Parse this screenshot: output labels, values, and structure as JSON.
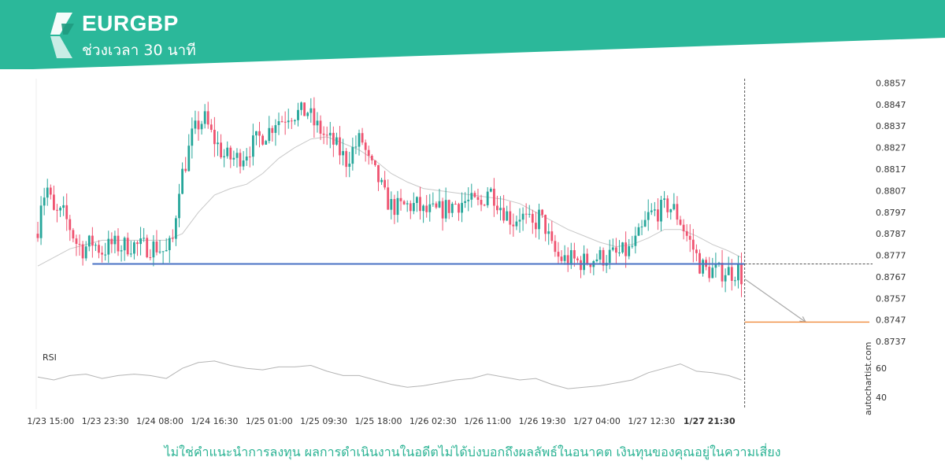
{
  "header": {
    "symbol": "EURGBP",
    "timeframe": "ช่วงเวลา 30 นาที"
  },
  "disclaimer": "ไม่ใช่คำแนะนำการลงทุน ผลการดำเนินงานในอดีตไม่ได้บ่งบอกถึงผลลัพธ์ในอนาคต เงินทุนของคุณอยู่ในความเสี่ยง",
  "watermark": "autochartist.com",
  "colors": {
    "brand": "#2bb89a",
    "brand_dark": "#1f9a80",
    "up": "#26a69a",
    "down": "#ef5370",
    "support_line": "#4a72c4",
    "target_line": "#f08a3c",
    "moving_average": "#c8c8c8",
    "rsi_line": "#b4b4b4"
  },
  "chart_data": {
    "type": "candlestick",
    "instrument": "EURGBP",
    "interval": "30m",
    "ylim": [
      0.8733,
      0.8859
    ],
    "y_ticks": [
      "0.8857",
      "0.8847",
      "0.8837",
      "0.8827",
      "0.8817",
      "0.8807",
      "0.8797",
      "0.8787",
      "0.8777",
      "0.8767",
      "0.8757",
      "0.8747",
      "0.8737"
    ],
    "x_ticks": [
      "1/23 15:00",
      "1/23 23:30",
      "1/24 08:00",
      "1/24 16:30",
      "1/25 01:00",
      "1/25 09:30",
      "1/25 18:00",
      "1/26 02:30",
      "1/26 11:00",
      "1/26 19:30",
      "1/27 04:00",
      "1/27 12:30",
      "1/27 21:30"
    ],
    "x_tick_positions": [
      4,
      21,
      38,
      55,
      72,
      89,
      106,
      123,
      140,
      157,
      174,
      191,
      209
    ],
    "highlighted_x_tick": "1/27 21:30",
    "total_slots": 245,
    "close_path": [
      [
        0,
        0.879
      ],
      [
        1,
        0.8803
      ],
      [
        3,
        0.8808
      ],
      [
        5,
        0.8796
      ],
      [
        8,
        0.8796
      ],
      [
        10,
        0.879
      ],
      [
        12,
        0.8783
      ],
      [
        14,
        0.878
      ],
      [
        17,
        0.8783
      ],
      [
        20,
        0.8779
      ],
      [
        23,
        0.8782
      ],
      [
        26,
        0.8781
      ],
      [
        29,
        0.8782
      ],
      [
        32,
        0.8781
      ],
      [
        35,
        0.8781
      ],
      [
        37,
        0.8781
      ],
      [
        40,
        0.8778
      ],
      [
        42,
        0.8784
      ],
      [
        44,
        0.881
      ],
      [
        46,
        0.882
      ],
      [
        48,
        0.8832
      ],
      [
        50,
        0.8838
      ],
      [
        52,
        0.884
      ],
      [
        54,
        0.8833
      ],
      [
        56,
        0.8828
      ],
      [
        58,
        0.8823
      ],
      [
        60,
        0.8822
      ],
      [
        62,
        0.8822
      ],
      [
        64,
        0.8824
      ],
      [
        66,
        0.8827
      ],
      [
        68,
        0.883
      ],
      [
        70,
        0.8833
      ],
      [
        72,
        0.8835
      ],
      [
        74,
        0.884
      ],
      [
        76,
        0.884
      ],
      [
        78,
        0.8843
      ],
      [
        80,
        0.8843
      ],
      [
        82,
        0.8843
      ],
      [
        84,
        0.8844
      ],
      [
        86,
        0.8838
      ],
      [
        88,
        0.8835
      ],
      [
        90,
        0.8831
      ],
      [
        92,
        0.8829
      ],
      [
        94,
        0.8825
      ],
      [
        96,
        0.8821
      ],
      [
        98,
        0.8826
      ],
      [
        100,
        0.883
      ],
      [
        101,
        0.883
      ],
      [
        103,
        0.882
      ],
      [
        106,
        0.8812
      ],
      [
        108,
        0.8804
      ],
      [
        110,
        0.88
      ],
      [
        112,
        0.8799
      ],
      [
        115,
        0.88
      ],
      [
        118,
        0.88
      ],
      [
        120,
        0.8797
      ],
      [
        122,
        0.8797
      ],
      [
        124,
        0.8797
      ],
      [
        127,
        0.8799
      ],
      [
        130,
        0.8801
      ],
      [
        133,
        0.8802
      ],
      [
        136,
        0.8801
      ],
      [
        138,
        0.88
      ],
      [
        140,
        0.8808
      ],
      [
        142,
        0.8805
      ],
      [
        144,
        0.88
      ],
      [
        146,
        0.8796
      ],
      [
        148,
        0.8793
      ],
      [
        150,
        0.8796
      ],
      [
        152,
        0.8793
      ],
      [
        154,
        0.879
      ],
      [
        156,
        0.8795
      ],
      [
        158,
        0.879
      ],
      [
        160,
        0.878
      ],
      [
        162,
        0.8776
      ],
      [
        164,
        0.8775
      ],
      [
        166,
        0.8775
      ],
      [
        168,
        0.8774
      ],
      [
        170,
        0.8774
      ],
      [
        172,
        0.8775
      ],
      [
        174,
        0.8776
      ],
      [
        176,
        0.8776
      ],
      [
        178,
        0.8777
      ],
      [
        180,
        0.8777
      ],
      [
        182,
        0.8778
      ],
      [
        184,
        0.8779
      ],
      [
        186,
        0.8783
      ],
      [
        188,
        0.8788
      ],
      [
        190,
        0.8795
      ],
      [
        192,
        0.8797
      ],
      [
        194,
        0.8798
      ],
      [
        196,
        0.88
      ],
      [
        198,
        0.8798
      ],
      [
        200,
        0.8793
      ],
      [
        202,
        0.8786
      ],
      [
        204,
        0.878
      ],
      [
        206,
        0.8773
      ],
      [
        208,
        0.877
      ],
      [
        210,
        0.877
      ],
      [
        212,
        0.8769
      ],
      [
        214,
        0.877
      ],
      [
        216,
        0.8769
      ],
      [
        218,
        0.877
      ],
      [
        219,
        0.8767
      ]
    ],
    "support_level": 0.8773,
    "support_start_slot": 17,
    "breakout_slot": 220,
    "forecast": {
      "from_slot": 220,
      "from_value": 0.8766,
      "to_slot": 239,
      "to_value": 0.8746
    },
    "target_level": 0.8746,
    "moving_average_path": [
      [
        0,
        0.8772
      ],
      [
        10,
        0.878
      ],
      [
        20,
        0.8784
      ],
      [
        30,
        0.8784
      ],
      [
        40,
        0.8784
      ],
      [
        45,
        0.8787
      ],
      [
        50,
        0.8797
      ],
      [
        55,
        0.8805
      ],
      [
        60,
        0.8808
      ],
      [
        65,
        0.881
      ],
      [
        70,
        0.8815
      ],
      [
        75,
        0.8822
      ],
      [
        80,
        0.8827
      ],
      [
        85,
        0.8831
      ],
      [
        90,
        0.8832
      ],
      [
        95,
        0.8829
      ],
      [
        100,
        0.8826
      ],
      [
        105,
        0.8821
      ],
      [
        110,
        0.8815
      ],
      [
        115,
        0.8811
      ],
      [
        120,
        0.8808
      ],
      [
        125,
        0.8807
      ],
      [
        130,
        0.8806
      ],
      [
        135,
        0.8805
      ],
      [
        140,
        0.8804
      ],
      [
        145,
        0.8803
      ],
      [
        150,
        0.8801
      ],
      [
        155,
        0.8797
      ],
      [
        160,
        0.8793
      ],
      [
        165,
        0.8789
      ],
      [
        170,
        0.8786
      ],
      [
        175,
        0.8783
      ],
      [
        180,
        0.8781
      ],
      [
        185,
        0.8782
      ],
      [
        190,
        0.8785
      ],
      [
        195,
        0.8789
      ],
      [
        200,
        0.8789
      ],
      [
        205,
        0.8786
      ],
      [
        210,
        0.8782
      ],
      [
        215,
        0.8779
      ],
      [
        219,
        0.8776
      ]
    ],
    "rsi": {
      "label": "RSI",
      "ylim": [
        32,
        72
      ],
      "ticks": [
        "60",
        "40"
      ],
      "path": [
        [
          0,
          54
        ],
        [
          5,
          52
        ],
        [
          10,
          55
        ],
        [
          15,
          56
        ],
        [
          20,
          53
        ],
        [
          25,
          55
        ],
        [
          30,
          56
        ],
        [
          35,
          55
        ],
        [
          40,
          53
        ],
        [
          45,
          60
        ],
        [
          50,
          64
        ],
        [
          55,
          65
        ],
        [
          60,
          62
        ],
        [
          65,
          60
        ],
        [
          70,
          59
        ],
        [
          75,
          61
        ],
        [
          80,
          61
        ],
        [
          85,
          62
        ],
        [
          90,
          58
        ],
        [
          95,
          55
        ],
        [
          100,
          55
        ],
        [
          105,
          52
        ],
        [
          110,
          49
        ],
        [
          115,
          47
        ],
        [
          120,
          48
        ],
        [
          125,
          50
        ],
        [
          130,
          52
        ],
        [
          135,
          53
        ],
        [
          140,
          56
        ],
        [
          145,
          54
        ],
        [
          150,
          52
        ],
        [
          155,
          53
        ],
        [
          160,
          49
        ],
        [
          165,
          46
        ],
        [
          170,
          47
        ],
        [
          175,
          48
        ],
        [
          180,
          50
        ],
        [
          185,
          52
        ],
        [
          190,
          57
        ],
        [
          195,
          60
        ],
        [
          200,
          63
        ],
        [
          205,
          58
        ],
        [
          210,
          57
        ],
        [
          215,
          55
        ],
        [
          219,
          52
        ]
      ]
    }
  }
}
